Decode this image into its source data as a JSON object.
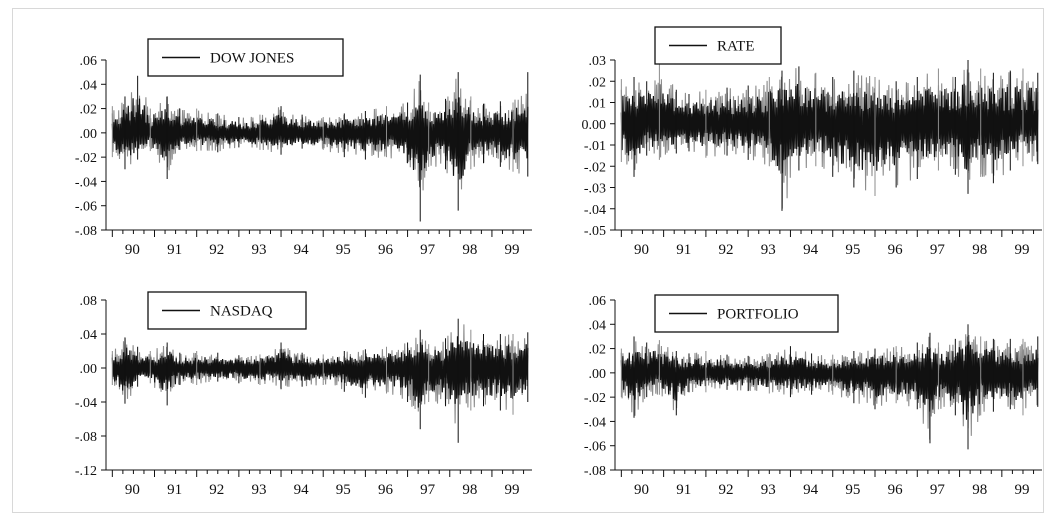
{
  "chart_data": [
    {
      "type": "line",
      "title": "",
      "xlabel": "",
      "ylabel": "",
      "x_tick_labels": [
        "90",
        "91",
        "92",
        "93",
        "94",
        "95",
        "96",
        "97",
        "98",
        "99"
      ],
      "xlim": [
        1989.85,
        1999.95
      ],
      "y_tick_labels": [
        ".06",
        ".04",
        ".02",
        ".00",
        "-.02",
        "-.04",
        "-.06",
        "-.08"
      ],
      "ylim": [
        -0.08,
        0.06
      ],
      "legend": {
        "position": "top-left",
        "entries": [
          "DOW JONES"
        ]
      },
      "grid": false,
      "series": [
        {
          "name": "DOW JONES",
          "color": "#111111",
          "band_color": "#8c8c8c",
          "x": [
            1990.0,
            1990.3,
            1990.6,
            1990.9,
            1991.3,
            1991.6,
            1992.0,
            1992.5,
            1993.0,
            1993.5,
            1994.0,
            1994.5,
            1995.0,
            1995.5,
            1996.0,
            1996.5,
            1997.0,
            1997.3,
            1997.5,
            1997.9,
            1998.2,
            1998.5,
            1998.8,
            1999.2,
            1999.5,
            1999.85
          ],
          "upper": [
            0.022,
            0.03,
            0.047,
            0.02,
            0.03,
            0.02,
            0.02,
            0.016,
            0.013,
            0.015,
            0.022,
            0.015,
            0.013,
            0.016,
            0.018,
            0.022,
            0.025,
            0.048,
            0.025,
            0.028,
            0.05,
            0.03,
            0.024,
            0.026,
            0.025,
            0.05
          ],
          "lower": [
            -0.02,
            -0.03,
            -0.022,
            -0.015,
            -0.038,
            -0.014,
            -0.015,
            -0.016,
            -0.012,
            -0.014,
            -0.018,
            -0.013,
            -0.014,
            -0.02,
            -0.022,
            -0.02,
            -0.025,
            -0.073,
            -0.028,
            -0.03,
            -0.064,
            -0.03,
            -0.025,
            -0.028,
            -0.032,
            -0.036
          ]
        }
      ]
    },
    {
      "type": "line",
      "title": "",
      "xlabel": "",
      "ylabel": "",
      "x_tick_labels": [
        "90",
        "91",
        "92",
        "93",
        "94",
        "95",
        "96",
        "97",
        "98",
        "99"
      ],
      "xlim": [
        1989.85,
        1999.95
      ],
      "y_tick_labels": [
        ".03",
        ".02",
        ".01",
        "0.00",
        "-.01",
        "-.02",
        "-.03",
        "-.04",
        "-.05"
      ],
      "ylim": [
        -0.05,
        0.03
      ],
      "legend": {
        "position": "top-center",
        "entries": [
          "RATE"
        ]
      },
      "grid": false,
      "series": [
        {
          "name": "RATE",
          "color": "#111111",
          "band_color": "#8c8c8c",
          "x": [
            1990.0,
            1990.3,
            1990.6,
            1990.9,
            1991.3,
            1991.6,
            1992.0,
            1992.5,
            1993.0,
            1993.5,
            1993.8,
            1994.2,
            1994.6,
            1995.0,
            1995.5,
            1996.0,
            1996.5,
            1997.0,
            1997.5,
            1997.9,
            1998.2,
            1998.5,
            1998.8,
            1999.2,
            1999.5,
            1999.85
          ],
          "upper": [
            0.021,
            0.022,
            0.02,
            0.028,
            0.016,
            0.014,
            0.016,
            0.017,
            0.018,
            0.022,
            0.025,
            0.027,
            0.024,
            0.022,
            0.025,
            0.022,
            0.02,
            0.022,
            0.026,
            0.022,
            0.03,
            0.026,
            0.024,
            0.025,
            0.026,
            0.024
          ],
          "lower": [
            -0.018,
            -0.025,
            -0.015,
            -0.017,
            -0.014,
            -0.013,
            -0.016,
            -0.015,
            -0.017,
            -0.02,
            -0.041,
            -0.022,
            -0.02,
            -0.025,
            -0.03,
            -0.034,
            -0.03,
            -0.026,
            -0.022,
            -0.024,
            -0.033,
            -0.025,
            -0.028,
            -0.022,
            -0.02,
            -0.019
          ]
        }
      ]
    },
    {
      "type": "line",
      "title": "",
      "xlabel": "",
      "ylabel": "",
      "x_tick_labels": [
        "90",
        "91",
        "92",
        "93",
        "94",
        "95",
        "96",
        "97",
        "98",
        "99"
      ],
      "xlim": [
        1989.85,
        1999.95
      ],
      "y_tick_labels": [
        ".08",
        ".04",
        ".00",
        "-.04",
        "-.08",
        "-.12"
      ],
      "ylim": [
        -0.12,
        0.08
      ],
      "legend": {
        "position": "top-left",
        "entries": [
          "NASDAQ"
        ]
      },
      "grid": false,
      "series": [
        {
          "name": "NASDAQ",
          "color": "#111111",
          "band_color": "#8c8c8c",
          "x": [
            1990.0,
            1990.3,
            1990.6,
            1990.9,
            1991.3,
            1991.6,
            1992.0,
            1992.5,
            1993.0,
            1993.5,
            1994.0,
            1994.5,
            1995.0,
            1995.5,
            1996.0,
            1996.5,
            1997.0,
            1997.3,
            1997.5,
            1997.9,
            1998.2,
            1998.5,
            1998.8,
            1999.2,
            1999.5,
            1999.85
          ],
          "upper": [
            0.02,
            0.036,
            0.025,
            0.02,
            0.03,
            0.018,
            0.02,
            0.018,
            0.015,
            0.016,
            0.03,
            0.018,
            0.016,
            0.02,
            0.022,
            0.025,
            0.03,
            0.045,
            0.028,
            0.035,
            0.058,
            0.045,
            0.04,
            0.04,
            0.04,
            0.042
          ],
          "lower": [
            -0.02,
            -0.042,
            -0.022,
            -0.018,
            -0.044,
            -0.02,
            -0.02,
            -0.016,
            -0.018,
            -0.02,
            -0.025,
            -0.022,
            -0.02,
            -0.028,
            -0.035,
            -0.03,
            -0.04,
            -0.072,
            -0.04,
            -0.045,
            -0.088,
            -0.05,
            -0.045,
            -0.05,
            -0.055,
            -0.04
          ]
        }
      ]
    },
    {
      "type": "line",
      "title": "",
      "xlabel": "",
      "ylabel": "",
      "x_tick_labels": [
        "90",
        "91",
        "92",
        "93",
        "94",
        "95",
        "96",
        "97",
        "98",
        "99"
      ],
      "xlim": [
        1989.85,
        1999.95
      ],
      "y_tick_labels": [
        ".06",
        ".04",
        ".02",
        ".00",
        "-.02",
        "-.04",
        "-.06",
        "-.08"
      ],
      "ylim": [
        -0.08,
        0.06
      ],
      "legend": {
        "position": "top-left",
        "entries": [
          "PORTFOLIO"
        ]
      },
      "grid": false,
      "series": [
        {
          "name": "PORTFOLIO",
          "color": "#111111",
          "band_color": "#8c8c8c",
          "x": [
            1990.0,
            1990.3,
            1990.6,
            1990.9,
            1991.3,
            1991.6,
            1992.0,
            1992.5,
            1993.0,
            1993.5,
            1994.0,
            1994.5,
            1995.0,
            1995.5,
            1996.0,
            1996.5,
            1997.0,
            1997.3,
            1997.5,
            1997.9,
            1998.2,
            1998.5,
            1998.8,
            1999.2,
            1999.5,
            1999.85
          ],
          "upper": [
            0.02,
            0.03,
            0.025,
            0.027,
            0.018,
            0.016,
            0.018,
            0.015,
            0.014,
            0.016,
            0.022,
            0.016,
            0.015,
            0.018,
            0.02,
            0.022,
            0.025,
            0.033,
            0.025,
            0.028,
            0.04,
            0.03,
            0.028,
            0.028,
            0.028,
            0.03
          ],
          "lower": [
            -0.02,
            -0.037,
            -0.02,
            -0.018,
            -0.035,
            -0.016,
            -0.016,
            -0.014,
            -0.015,
            -0.017,
            -0.02,
            -0.018,
            -0.018,
            -0.025,
            -0.03,
            -0.025,
            -0.03,
            -0.058,
            -0.03,
            -0.035,
            -0.063,
            -0.035,
            -0.032,
            -0.03,
            -0.035,
            -0.028
          ]
        }
      ]
    }
  ]
}
